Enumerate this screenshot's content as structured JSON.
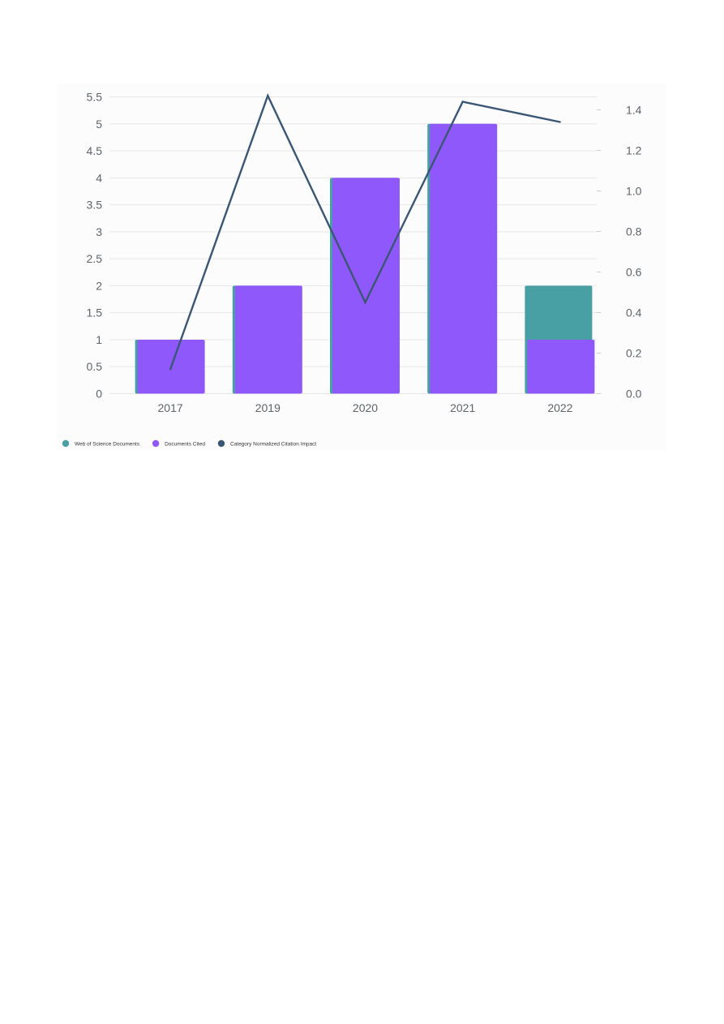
{
  "chart_data": {
    "type": "bar",
    "categories": [
      "2017",
      "2019",
      "2020",
      "2021",
      "2022"
    ],
    "series": [
      {
        "name": "Web of Science Documents",
        "type": "bar",
        "axis": "left",
        "color": "#48a0a4",
        "values": [
          1,
          2,
          4,
          5,
          2
        ]
      },
      {
        "name": "Documents Cited",
        "type": "bar",
        "axis": "left",
        "color": "#8e58fa",
        "values": [
          1,
          2,
          4,
          5,
          1
        ]
      },
      {
        "name": "Category Normalized Citation Impact",
        "type": "line",
        "axis": "right",
        "color": "#3b5674",
        "values": [
          0.12,
          1.47,
          0.45,
          1.44,
          1.34
        ]
      }
    ],
    "y_left": {
      "min": 0,
      "max": 5.5,
      "ticks": [
        "0",
        "0.5",
        "1",
        "1.5",
        "2",
        "2.5",
        "3",
        "3.5",
        "4",
        "4.5",
        "5",
        "5.5"
      ]
    },
    "y_right": {
      "min": 0,
      "max": 1.4,
      "ticks": [
        "0.0",
        "0.2",
        "0.4",
        "0.6",
        "0.8",
        "1.0",
        "1.2",
        "1.4"
      ]
    },
    "grid": true,
    "legend_position": "bottom-left"
  }
}
